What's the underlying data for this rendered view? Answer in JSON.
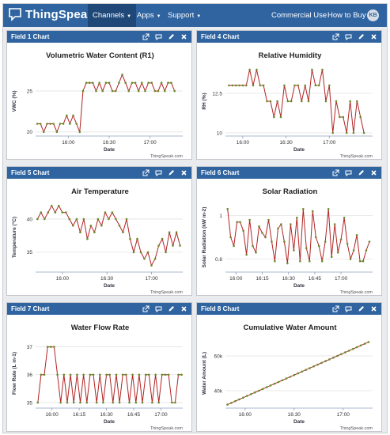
{
  "navbar": {
    "brand": "ThingSpeak",
    "trademark": "™",
    "items": [
      {
        "label": "Channels",
        "caret": true,
        "active": true
      },
      {
        "label": "Apps",
        "caret": true,
        "active": false
      },
      {
        "label": "Support",
        "caret": true,
        "active": false
      }
    ],
    "commercial_use": "Commercial Use",
    "how_to_buy": "How to Buy",
    "avatar_initials": "KB"
  },
  "panel_icons": [
    "external-link-icon",
    "comment-icon",
    "edit-pencil-icon",
    "close-icon"
  ],
  "credit": "ThingSpeak.com",
  "colors": {
    "navbar": "#2f64a1",
    "line": "#b22222",
    "marker": "#6a8a2a",
    "grid": "#e3e3e3"
  },
  "panels": [
    {
      "heading": "Field 1 Chart"
    },
    {
      "heading": "Field 4 Chart"
    },
    {
      "heading": "Field 5 Chart"
    },
    {
      "heading": "Field 6 Chart"
    },
    {
      "heading": "Field 7 Chart"
    },
    {
      "heading": "Field 8 Chart"
    }
  ],
  "chart_data": [
    {
      "type": "line",
      "title": "Volumetric Water Content (R1)",
      "xlabel": "Date",
      "ylabel": "VWC (%)",
      "ylim": [
        19.5,
        28
      ],
      "yticks": [
        {
          "v": 20,
          "label": "20"
        },
        {
          "v": 25,
          "label": "25"
        }
      ],
      "xlim": [
        15.6,
        17.4
      ],
      "xticks": [
        {
          "v": 16.0,
          "label": "16:00"
        },
        {
          "v": 16.5,
          "label": "16:30"
        },
        {
          "v": 17.0,
          "label": "17:00"
        }
      ],
      "markers": true,
      "x": [
        15.62,
        15.66,
        15.7,
        15.74,
        15.78,
        15.82,
        15.86,
        15.9,
        15.94,
        15.98,
        16.02,
        16.06,
        16.1,
        16.14,
        16.18,
        16.22,
        16.26,
        16.3,
        16.34,
        16.38,
        16.42,
        16.46,
        16.5,
        16.54,
        16.58,
        16.62,
        16.66,
        16.7,
        16.74,
        16.78,
        16.82,
        16.86,
        16.9,
        16.94,
        16.98,
        17.02,
        17.06,
        17.1,
        17.14,
        17.18,
        17.22,
        17.26,
        17.3
      ],
      "y": [
        21,
        21,
        20,
        21,
        21,
        21,
        20,
        21,
        21,
        22,
        21,
        22,
        21,
        20,
        25,
        26,
        26,
        26,
        25,
        26,
        25,
        26,
        26,
        25,
        25,
        26,
        27,
        26,
        25,
        26,
        26,
        25,
        26,
        25,
        26,
        26,
        25,
        25,
        26,
        25,
        26,
        26,
        25
      ]
    },
    {
      "type": "line",
      "title": "Relative Humidity",
      "xlabel": "Date",
      "ylabel": "RH (%)",
      "ylim": [
        9.8,
        14.2
      ],
      "yticks": [
        {
          "v": 10,
          "label": "10"
        },
        {
          "v": 12.5,
          "label": "12.5"
        }
      ],
      "xlim": [
        15.8,
        17.5
      ],
      "xticks": [
        {
          "v": 16.0,
          "label": "16:00"
        },
        {
          "v": 16.5,
          "label": "16:30"
        },
        {
          "v": 17.0,
          "label": "17:00"
        }
      ],
      "markers": true,
      "x": [
        15.84,
        15.88,
        15.92,
        15.96,
        16.0,
        16.04,
        16.08,
        16.12,
        16.16,
        16.2,
        16.24,
        16.28,
        16.32,
        16.36,
        16.4,
        16.44,
        16.48,
        16.52,
        16.56,
        16.6,
        16.64,
        16.68,
        16.72,
        16.76,
        16.8,
        16.84,
        16.88,
        16.92,
        16.96,
        17.0,
        17.04,
        17.08,
        17.12,
        17.16,
        17.2,
        17.24,
        17.28,
        17.32,
        17.36,
        17.4
      ],
      "y": [
        13,
        13,
        13,
        13,
        13,
        13,
        14,
        13,
        14,
        13,
        13,
        12,
        12,
        11,
        12,
        11,
        13,
        12,
        12,
        13,
        13,
        12,
        13,
        12,
        14,
        13,
        13,
        14,
        12,
        13,
        10,
        12,
        11,
        11,
        10,
        12,
        10,
        12,
        11,
        10
      ]
    },
    {
      "type": "line",
      "title": "Air Temperature",
      "xlabel": "Date",
      "ylabel": "Temperature (°C)",
      "ylim": [
        32,
        42.5
      ],
      "yticks": [
        {
          "v": 35,
          "label": "35"
        },
        {
          "v": 40,
          "label": "40"
        }
      ],
      "xlim": [
        15.7,
        17.35
      ],
      "xticks": [
        {
          "v": 16.0,
          "label": "16:00"
        },
        {
          "v": 16.5,
          "label": "16:30"
        },
        {
          "v": 17.0,
          "label": "17:00"
        }
      ],
      "markers": true,
      "x": [
        15.72,
        15.76,
        15.8,
        15.84,
        15.88,
        15.92,
        15.96,
        16.0,
        16.04,
        16.08,
        16.12,
        16.16,
        16.2,
        16.24,
        16.28,
        16.32,
        16.36,
        16.4,
        16.44,
        16.48,
        16.52,
        16.56,
        16.6,
        16.64,
        16.68,
        16.72,
        16.76,
        16.8,
        16.84,
        16.88,
        16.92,
        16.96,
        17.0,
        17.04,
        17.08,
        17.12,
        17.16,
        17.2,
        17.24,
        17.28,
        17.32
      ],
      "y": [
        40,
        41,
        40,
        41,
        42,
        41,
        42,
        41,
        41,
        40,
        39,
        40,
        38,
        40,
        37,
        39,
        38,
        40,
        39,
        41,
        40,
        41,
        40,
        39,
        38,
        40,
        37,
        35,
        37,
        35,
        34,
        35,
        33,
        34,
        36,
        37,
        35,
        38,
        36,
        38,
        36
      ]
    },
    {
      "type": "line",
      "title": "Solar Radiation",
      "xlabel": "Date",
      "ylabel": "Solar Radiation (kW m-2)",
      "ylim": [
        0.74,
        1.06
      ],
      "yticks": [
        {
          "v": 0.8,
          "label": "0.8"
        },
        {
          "v": 1.0,
          "label": "1"
        }
      ],
      "xlim": [
        15.9,
        17.3
      ],
      "xticks": [
        {
          "v": 16.0,
          "label": "16:00"
        },
        {
          "v": 16.25,
          "label": "16:15"
        },
        {
          "v": 16.5,
          "label": "16:30"
        },
        {
          "v": 16.75,
          "label": "16:45"
        },
        {
          "v": 17.0,
          "label": "17:00"
        }
      ],
      "markers": true,
      "x": [
        15.92,
        15.95,
        15.98,
        16.01,
        16.04,
        16.07,
        16.1,
        16.13,
        16.16,
        16.19,
        16.22,
        16.25,
        16.28,
        16.31,
        16.34,
        16.37,
        16.4,
        16.43,
        16.46,
        16.49,
        16.52,
        16.55,
        16.58,
        16.61,
        16.64,
        16.67,
        16.7,
        16.73,
        16.76,
        16.79,
        16.82,
        16.85,
        16.88,
        16.91,
        16.94,
        16.97,
        17.0,
        17.03,
        17.06,
        17.09,
        17.12,
        17.15,
        17.18,
        17.21,
        17.24,
        17.27
      ],
      "y": [
        1.03,
        0.9,
        0.86,
        0.97,
        0.97,
        0.93,
        0.82,
        0.98,
        0.86,
        0.83,
        0.95,
        0.92,
        0.9,
        0.98,
        0.88,
        0.79,
        0.94,
        0.96,
        0.88,
        0.78,
        0.96,
        0.84,
        0.99,
        0.79,
        1.03,
        0.85,
        0.79,
        1.02,
        0.9,
        0.86,
        0.79,
        0.88,
        1.03,
        0.81,
        0.96,
        0.83,
        0.89,
        0.99,
        0.87,
        0.8,
        0.84,
        0.91,
        0.79,
        0.79,
        0.84,
        0.88
      ]
    },
    {
      "type": "line",
      "title": "Water Flow Rate",
      "xlabel": "Date",
      "ylabel": "Flow Rate (L m-1)",
      "ylim": [
        34.8,
        37.3
      ],
      "yticks": [
        {
          "v": 35,
          "label": "35"
        },
        {
          "v": 36,
          "label": "36"
        },
        {
          "v": 37,
          "label": "37"
        }
      ],
      "xlim": [
        15.85,
        17.2
      ],
      "xticks": [
        {
          "v": 16.0,
          "label": "16:00"
        },
        {
          "v": 16.25,
          "label": "16:15"
        },
        {
          "v": 16.5,
          "label": "16:30"
        },
        {
          "v": 16.75,
          "label": "16:45"
        },
        {
          "v": 17.0,
          "label": "17:00"
        }
      ],
      "markers": true,
      "x": [
        15.87,
        15.9,
        15.93,
        15.96,
        15.99,
        16.02,
        16.05,
        16.08,
        16.11,
        16.14,
        16.17,
        16.2,
        16.23,
        16.26,
        16.29,
        16.32,
        16.35,
        16.38,
        16.41,
        16.44,
        16.47,
        16.5,
        16.53,
        16.56,
        16.59,
        16.62,
        16.65,
        16.68,
        16.71,
        16.74,
        16.77,
        16.8,
        16.83,
        16.86,
        16.89,
        16.92,
        16.95,
        16.98,
        17.01,
        17.04,
        17.07,
        17.1,
        17.13,
        17.16,
        17.19
      ],
      "y": [
        35,
        36,
        36,
        37,
        37,
        37,
        36,
        35,
        36,
        35,
        36,
        35,
        36,
        35,
        36,
        35,
        36,
        36,
        35,
        36,
        35,
        36,
        36,
        35,
        36,
        35,
        36,
        36,
        35,
        36,
        35,
        36,
        35,
        36,
        36,
        35,
        36,
        35,
        36,
        36,
        36,
        35,
        35,
        36,
        36
      ]
    },
    {
      "type": "line",
      "title": "Cumulative Water Amount",
      "xlabel": "Date",
      "ylabel": "Water Amount (L)",
      "ylim": [
        30000,
        70000
      ],
      "yticks": [
        {
          "v": 40000,
          "label": "40k"
        },
        {
          "v": 60000,
          "label": "60k"
        }
      ],
      "xlim": [
        15.8,
        17.3
      ],
      "xticks": [
        {
          "v": 16.0,
          "label": "16:00"
        },
        {
          "v": 16.5,
          "label": "16:30"
        },
        {
          "v": 17.0,
          "label": "17:00"
        }
      ],
      "markers": true,
      "x": [
        15.82,
        15.86,
        15.9,
        15.94,
        15.98,
        16.02,
        16.06,
        16.1,
        16.14,
        16.18,
        16.22,
        16.26,
        16.3,
        16.34,
        16.38,
        16.42,
        16.46,
        16.5,
        16.54,
        16.58,
        16.62,
        16.66,
        16.7,
        16.74,
        16.78,
        16.82,
        16.86,
        16.9,
        16.94,
        16.98,
        17.02,
        17.06,
        17.1,
        17.14,
        17.18,
        17.22,
        17.26
      ],
      "y": [
        32000,
        33000,
        34000,
        35000,
        36000,
        37000,
        38000,
        39000,
        40000,
        41000,
        42000,
        43000,
        44000,
        45000,
        46000,
        47000,
        48000,
        49000,
        50000,
        51000,
        52000,
        53000,
        54000,
        55000,
        56000,
        57000,
        58000,
        59000,
        60000,
        61000,
        62000,
        63000,
        64000,
        65000,
        66000,
        67000,
        68000
      ]
    }
  ]
}
